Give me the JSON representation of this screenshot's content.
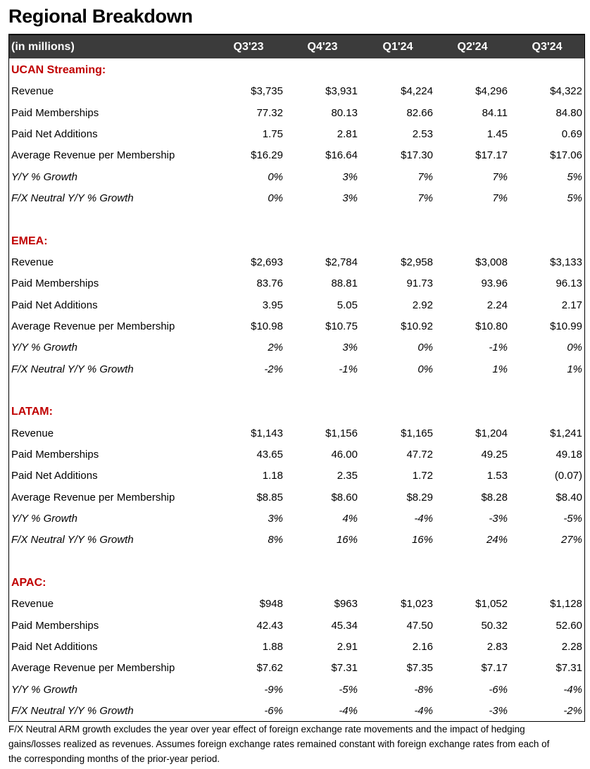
{
  "header": {
    "title": "Regional Breakdown"
  },
  "table": {
    "columns": [
      "(in millions)",
      "Q3'23",
      "Q4'23",
      "Q1'24",
      "Q2'24",
      "Q3'24"
    ],
    "sections": [
      {
        "name": "UCAN Streaming:",
        "rows": [
          [
            "Revenue",
            "$3,735",
            "$3,931",
            "$4,224",
            "$4,296",
            "$4,322"
          ],
          [
            "Paid Memberships",
            "77.32",
            "80.13",
            "82.66",
            "84.11",
            "84.80"
          ],
          [
            "Paid Net Additions",
            "1.75",
            "2.81",
            "2.53",
            "1.45",
            "0.69"
          ],
          [
            "Average Revenue per Membership",
            "$16.29",
            "$16.64",
            "$17.30",
            "$17.17",
            "$17.06"
          ],
          [
            "Y/Y % Growth",
            "0%",
            "3%",
            "7%",
            "7%",
            "5%"
          ],
          [
            "F/X Neutral Y/Y % Growth",
            "0%",
            "3%",
            "7%",
            "7%",
            "5%"
          ]
        ]
      },
      {
        "name": "EMEA:",
        "rows": [
          [
            "Revenue",
            "$2,693",
            "$2,784",
            "$2,958",
            "$3,008",
            "$3,133"
          ],
          [
            "Paid Memberships",
            "83.76",
            "88.81",
            "91.73",
            "93.96",
            "96.13"
          ],
          [
            "Paid Net Additions",
            "3.95",
            "5.05",
            "2.92",
            "2.24",
            "2.17"
          ],
          [
            "Average Revenue per Membership",
            "$10.98",
            "$10.75",
            "$10.92",
            "$10.80",
            "$10.99"
          ],
          [
            "Y/Y % Growth",
            "2%",
            "3%",
            "0%",
            "-1%",
            "0%"
          ],
          [
            "F/X Neutral Y/Y % Growth",
            "-2%",
            "-1%",
            "0%",
            "1%",
            "1%"
          ]
        ]
      },
      {
        "name": "LATAM:",
        "rows": [
          [
            "Revenue",
            "$1,143",
            "$1,156",
            "$1,165",
            "$1,204",
            "$1,241"
          ],
          [
            "Paid Memberships",
            "43.65",
            "46.00",
            "47.72",
            "49.25",
            "49.18"
          ],
          [
            "Paid Net Additions",
            "1.18",
            "2.35",
            "1.72",
            "1.53",
            "(0.07)"
          ],
          [
            "Average Revenue per Membership",
            "$8.85",
            "$8.60",
            "$8.29",
            "$8.28",
            "$8.40"
          ],
          [
            "Y/Y % Growth",
            "3%",
            "4%",
            "-4%",
            "-3%",
            "-5%"
          ],
          [
            "F/X Neutral Y/Y % Growth",
            "8%",
            "16%",
            "16%",
            "24%",
            "27%"
          ]
        ]
      },
      {
        "name": "APAC:",
        "rows": [
          [
            "Revenue",
            "$948",
            "$963",
            "$1,023",
            "$1,052",
            "$1,128"
          ],
          [
            "Paid Memberships",
            "42.43",
            "45.34",
            "47.50",
            "50.32",
            "52.60"
          ],
          [
            "Paid Net Additions",
            "1.88",
            "2.91",
            "2.16",
            "2.83",
            "2.28"
          ],
          [
            "Average Revenue per Membership",
            "$7.62",
            "$7.31",
            "$7.35",
            "$7.17",
            "$7.31"
          ],
          [
            "Y/Y % Growth",
            "-9%",
            "-5%",
            "-8%",
            "-6%",
            "-4%"
          ],
          [
            "F/X Neutral Y/Y % Growth",
            "-6%",
            "-4%",
            "-4%",
            "-3%",
            "-2%"
          ]
        ]
      }
    ]
  },
  "footnote": [
    "F/X Neutral ARM growth excludes the year over year effect of foreign exchange rate movements and the impact of hedging",
    "gains/losses realized as revenues. Assumes foreign exchange rates remained constant with foreign exchange rates from each of",
    "the corresponding months of the prior-year period."
  ]
}
